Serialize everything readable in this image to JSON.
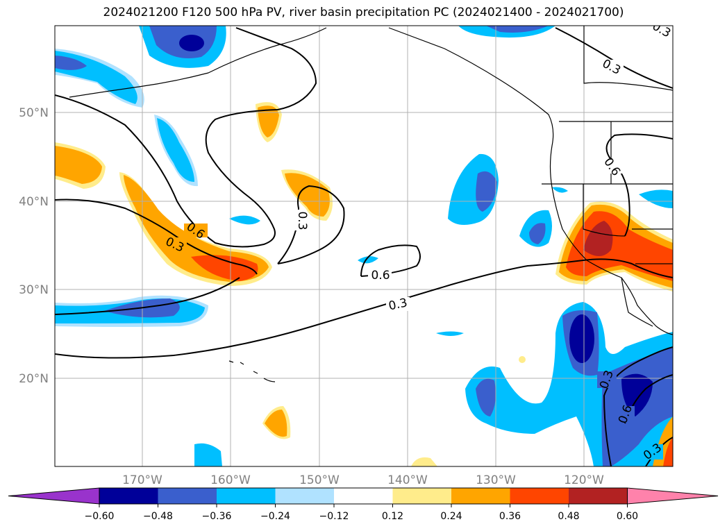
{
  "title": "2024021200 F120 500 hPa PV, river basin precipitation PC (2024021400 - 2024021700)",
  "lat_labels": [
    "50°N",
    "40°N",
    "30°N",
    "20°N"
  ],
  "lon_labels": [
    "170°W",
    "160°W",
    "150°W",
    "140°W",
    "130°W",
    "120°W"
  ],
  "colorbar": {
    "tick_labels": [
      "−0.60",
      "−0.48",
      "−0.36",
      "−0.24",
      "−0.12",
      "0.12",
      "0.24",
      "0.36",
      "0.48",
      "0.60"
    ],
    "colors": [
      "#9933cc",
      "#000099",
      "#3a5fcd",
      "#00bfff",
      "#b0e2ff",
      "#ffffff",
      "#ffec8b",
      "#ffa500",
      "#ff4500",
      "#b22222",
      "#ff82ab"
    ]
  },
  "contour_labels": [
    "0.3",
    "0.3",
    "0.6",
    "0.3",
    "0.3",
    "0.6",
    "0.3",
    "0.6",
    "0.3",
    "0.6",
    "0.3"
  ],
  "colors": {
    "contour": "#000000",
    "grid": "#b0b0b0",
    "coast": "#000000"
  }
}
